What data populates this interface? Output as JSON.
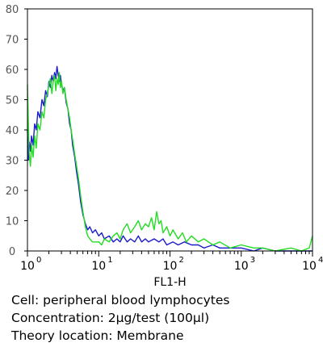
{
  "chart_data": {
    "type": "line",
    "xlabel": "FL1-H",
    "ylabel": "",
    "x_scale": "log",
    "xlim": [
      1,
      10000
    ],
    "ylim": [
      0,
      80
    ],
    "x_ticks": [
      {
        "value": 1,
        "base": "10",
        "exp": "0"
      },
      {
        "value": 10,
        "base": "10",
        "exp": "1"
      },
      {
        "value": 100,
        "base": "10",
        "exp": "2"
      },
      {
        "value": 1000,
        "base": "10",
        "exp": "3"
      },
      {
        "value": 10000,
        "base": "10",
        "exp": "4"
      }
    ],
    "y_ticks": [
      0,
      10,
      20,
      30,
      40,
      50,
      60,
      70,
      80
    ],
    "grid": false,
    "series": [
      {
        "color": "#1a1acc",
        "points": [
          [
            1.0,
            40
          ],
          [
            1.03,
            30
          ],
          [
            1.06,
            36
          ],
          [
            1.1,
            33
          ],
          [
            1.14,
            38
          ],
          [
            1.2,
            35
          ],
          [
            1.26,
            42
          ],
          [
            1.33,
            40
          ],
          [
            1.4,
            46
          ],
          [
            1.5,
            44
          ],
          [
            1.6,
            50
          ],
          [
            1.7,
            48
          ],
          [
            1.8,
            53
          ],
          [
            1.9,
            51
          ],
          [
            2.0,
            56
          ],
          [
            2.1,
            54
          ],
          [
            2.2,
            58
          ],
          [
            2.3,
            56
          ],
          [
            2.4,
            59
          ],
          [
            2.5,
            57
          ],
          [
            2.6,
            61
          ],
          [
            2.7,
            58
          ],
          [
            2.8,
            56
          ],
          [
            2.9,
            58
          ],
          [
            3.0,
            55
          ],
          [
            3.15,
            53
          ],
          [
            3.3,
            54
          ],
          [
            3.5,
            49
          ],
          [
            3.7,
            47
          ],
          [
            3.9,
            42
          ],
          [
            4.1,
            40
          ],
          [
            4.3,
            35
          ],
          [
            4.6,
            31
          ],
          [
            4.9,
            26
          ],
          [
            5.2,
            22
          ],
          [
            5.6,
            16
          ],
          [
            6.0,
            12
          ],
          [
            6.5,
            9
          ],
          [
            7.0,
            7
          ],
          [
            7.5,
            8
          ],
          [
            8.2,
            6
          ],
          [
            9.0,
            7
          ],
          [
            10,
            5
          ],
          [
            11,
            6
          ],
          [
            12,
            4
          ],
          [
            14,
            5
          ],
          [
            16,
            3
          ],
          [
            18,
            4
          ],
          [
            20,
            3
          ],
          [
            22,
            5
          ],
          [
            25,
            3
          ],
          [
            28,
            4
          ],
          [
            32,
            3
          ],
          [
            36,
            5
          ],
          [
            40,
            3
          ],
          [
            45,
            4
          ],
          [
            50,
            3
          ],
          [
            60,
            4
          ],
          [
            70,
            3
          ],
          [
            80,
            4
          ],
          [
            90,
            2
          ],
          [
            110,
            3
          ],
          [
            130,
            2
          ],
          [
            160,
            3
          ],
          [
            200,
            2
          ],
          [
            250,
            2
          ],
          [
            300,
            1
          ],
          [
            400,
            2
          ],
          [
            500,
            1
          ],
          [
            700,
            1
          ],
          [
            1000,
            1
          ],
          [
            1500,
            0
          ],
          [
            2000,
            1
          ],
          [
            3000,
            0
          ],
          [
            5000,
            0
          ],
          [
            7000,
            0
          ],
          [
            10000,
            0
          ]
        ]
      },
      {
        "color": "#22dd22",
        "points": [
          [
            1.0,
            55
          ],
          [
            1.03,
            42
          ],
          [
            1.06,
            32
          ],
          [
            1.1,
            28
          ],
          [
            1.14,
            35
          ],
          [
            1.2,
            31
          ],
          [
            1.26,
            38
          ],
          [
            1.33,
            34
          ],
          [
            1.4,
            42
          ],
          [
            1.5,
            40
          ],
          [
            1.6,
            46
          ],
          [
            1.7,
            44
          ],
          [
            1.8,
            50
          ],
          [
            1.9,
            52
          ],
          [
            2.0,
            55
          ],
          [
            2.1,
            57
          ],
          [
            2.2,
            52
          ],
          [
            2.3,
            56
          ],
          [
            2.4,
            58
          ],
          [
            2.5,
            53
          ],
          [
            2.6,
            57
          ],
          [
            2.7,
            55
          ],
          [
            2.8,
            59
          ],
          [
            2.9,
            54
          ],
          [
            3.0,
            56
          ],
          [
            3.15,
            52
          ],
          [
            3.3,
            54
          ],
          [
            3.5,
            50
          ],
          [
            3.7,
            47
          ],
          [
            3.9,
            44
          ],
          [
            4.1,
            40
          ],
          [
            4.3,
            37
          ],
          [
            4.6,
            32
          ],
          [
            4.9,
            28
          ],
          [
            5.2,
            24
          ],
          [
            5.6,
            18
          ],
          [
            6.0,
            13
          ],
          [
            6.5,
            8
          ],
          [
            7.0,
            5
          ],
          [
            7.5,
            4
          ],
          [
            8.2,
            3
          ],
          [
            9.0,
            3
          ],
          [
            10,
            3
          ],
          [
            11,
            2
          ],
          [
            12,
            4
          ],
          [
            14,
            3
          ],
          [
            16,
            5
          ],
          [
            18,
            6
          ],
          [
            20,
            4
          ],
          [
            22,
            7
          ],
          [
            25,
            9
          ],
          [
            28,
            6
          ],
          [
            32,
            8
          ],
          [
            36,
            10
          ],
          [
            40,
            7
          ],
          [
            45,
            9
          ],
          [
            50,
            8
          ],
          [
            55,
            11
          ],
          [
            60,
            7
          ],
          [
            65,
            13
          ],
          [
            70,
            9
          ],
          [
            75,
            10
          ],
          [
            80,
            6
          ],
          [
            90,
            8
          ],
          [
            100,
            5
          ],
          [
            110,
            7
          ],
          [
            130,
            4
          ],
          [
            150,
            6
          ],
          [
            170,
            3
          ],
          [
            200,
            5
          ],
          [
            250,
            3
          ],
          [
            300,
            4
          ],
          [
            400,
            2
          ],
          [
            500,
            3
          ],
          [
            700,
            1
          ],
          [
            1000,
            2
          ],
          [
            1500,
            1
          ],
          [
            2000,
            1
          ],
          [
            3000,
            0
          ],
          [
            5000,
            1
          ],
          [
            7000,
            0
          ],
          [
            9000,
            1
          ],
          [
            10000,
            5
          ]
        ]
      }
    ]
  },
  "caption": {
    "cell": "Cell: peripheral blood lymphocytes",
    "concentration": "Concentration: 2μg/test (100μl)",
    "location": "Theory location: Membrane"
  },
  "colors": {
    "axis": "#000000",
    "label_text": "#555555"
  }
}
